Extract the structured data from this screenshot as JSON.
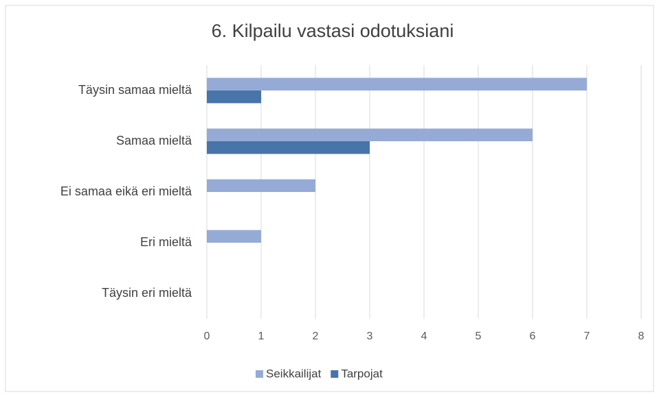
{
  "chart_data": {
    "type": "hbar",
    "title": "6. Kilpailu vastasi odotuksiani",
    "categories": [
      "Täysin samaa mieltä",
      "Samaa mieltä",
      "Ei samaa eikä eri mieltä",
      "Eri mieltä",
      "Täysin eri mieltä"
    ],
    "series": [
      {
        "name": "Seikkailijat",
        "color": "#95abd6",
        "values": [
          7,
          6,
          2,
          1,
          0
        ]
      },
      {
        "name": "Tarpojat",
        "color": "#4774a9",
        "values": [
          1,
          3,
          0,
          0,
          0
        ]
      }
    ],
    "xlim": [
      0,
      8
    ],
    "xticks": [
      0,
      1,
      2,
      3,
      4,
      5,
      6,
      7,
      8
    ],
    "grid": true,
    "legend": "bottom"
  }
}
